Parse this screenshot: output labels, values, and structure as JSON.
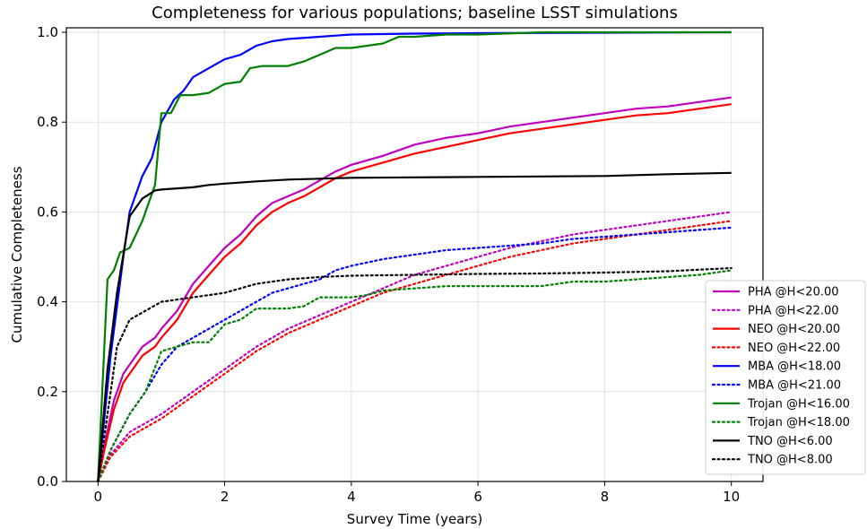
{
  "chart_data": {
    "type": "line",
    "title": "Completeness for various populations; baseline LSST simulations",
    "xlabel": "Survey Time (years)",
    "ylabel": "Cumulative Completeness",
    "xlim": [
      -0.5,
      10.5
    ],
    "ylim": [
      0.0,
      1.01
    ],
    "x_ticks": [
      "0",
      "2",
      "4",
      "6",
      "8",
      "10"
    ],
    "y_ticks": [
      "0.0",
      "0.2",
      "0.4",
      "0.6",
      "0.8",
      "1.0"
    ],
    "grid": true,
    "legend_position": "lower-right",
    "series": [
      {
        "name": "PHA @H<20.00",
        "color": "#bf00bf",
        "style": "solid",
        "points": [
          [
            0,
            0
          ],
          [
            0.1,
            0.08
          ],
          [
            0.25,
            0.18
          ],
          [
            0.4,
            0.24
          ],
          [
            0.5,
            0.26
          ],
          [
            0.7,
            0.3
          ],
          [
            0.9,
            0.32
          ],
          [
            1,
            0.34
          ],
          [
            1.25,
            0.38
          ],
          [
            1.5,
            0.44
          ],
          [
            1.75,
            0.48
          ],
          [
            2,
            0.52
          ],
          [
            2.25,
            0.55
          ],
          [
            2.5,
            0.59
          ],
          [
            2.75,
            0.62
          ],
          [
            3,
            0.635
          ],
          [
            3.25,
            0.65
          ],
          [
            3.5,
            0.67
          ],
          [
            3.75,
            0.69
          ],
          [
            4,
            0.705
          ],
          [
            4.5,
            0.725
          ],
          [
            5,
            0.75
          ],
          [
            5.5,
            0.765
          ],
          [
            6,
            0.775
          ],
          [
            6.5,
            0.79
          ],
          [
            7,
            0.8
          ],
          [
            7.5,
            0.81
          ],
          [
            8,
            0.82
          ],
          [
            8.5,
            0.83
          ],
          [
            9,
            0.835
          ],
          [
            9.5,
            0.845
          ],
          [
            10,
            0.855
          ]
        ]
      },
      {
        "name": "PHA @H<22.00",
        "color": "#bf00bf",
        "style": "dotted",
        "points": [
          [
            0,
            0
          ],
          [
            0.2,
            0.06
          ],
          [
            0.5,
            0.11
          ],
          [
            1,
            0.15
          ],
          [
            1.5,
            0.2
          ],
          [
            2,
            0.25
          ],
          [
            2.5,
            0.3
          ],
          [
            3,
            0.34
          ],
          [
            3.5,
            0.37
          ],
          [
            4,
            0.4
          ],
          [
            4.5,
            0.43
          ],
          [
            5,
            0.46
          ],
          [
            5.5,
            0.48
          ],
          [
            6,
            0.5
          ],
          [
            6.5,
            0.52
          ],
          [
            7,
            0.535
          ],
          [
            7.5,
            0.55
          ],
          [
            8,
            0.56
          ],
          [
            8.5,
            0.57
          ],
          [
            9,
            0.58
          ],
          [
            9.5,
            0.59
          ],
          [
            10,
            0.6
          ]
        ]
      },
      {
        "name": "NEO @H<20.00",
        "color": "#ff0000",
        "style": "solid",
        "points": [
          [
            0,
            0
          ],
          [
            0.1,
            0.07
          ],
          [
            0.25,
            0.16
          ],
          [
            0.4,
            0.22
          ],
          [
            0.5,
            0.24
          ],
          [
            0.7,
            0.28
          ],
          [
            0.9,
            0.3
          ],
          [
            1,
            0.32
          ],
          [
            1.25,
            0.36
          ],
          [
            1.5,
            0.42
          ],
          [
            1.75,
            0.46
          ],
          [
            2,
            0.5
          ],
          [
            2.25,
            0.53
          ],
          [
            2.5,
            0.57
          ],
          [
            2.75,
            0.6
          ],
          [
            3,
            0.62
          ],
          [
            3.25,
            0.635
          ],
          [
            3.5,
            0.655
          ],
          [
            3.75,
            0.675
          ],
          [
            4,
            0.69
          ],
          [
            4.5,
            0.71
          ],
          [
            5,
            0.73
          ],
          [
            5.5,
            0.745
          ],
          [
            6,
            0.76
          ],
          [
            6.5,
            0.775
          ],
          [
            7,
            0.785
          ],
          [
            7.5,
            0.795
          ],
          [
            8,
            0.805
          ],
          [
            8.5,
            0.815
          ],
          [
            9,
            0.82
          ],
          [
            9.5,
            0.83
          ],
          [
            10,
            0.84
          ]
        ]
      },
      {
        "name": "NEO @H<22.00",
        "color": "#ff0000",
        "style": "dotted",
        "points": [
          [
            0,
            0
          ],
          [
            0.2,
            0.055
          ],
          [
            0.5,
            0.1
          ],
          [
            1,
            0.14
          ],
          [
            1.5,
            0.19
          ],
          [
            2,
            0.24
          ],
          [
            2.5,
            0.29
          ],
          [
            3,
            0.33
          ],
          [
            3.5,
            0.36
          ],
          [
            4,
            0.39
          ],
          [
            4.5,
            0.42
          ],
          [
            5,
            0.44
          ],
          [
            5.5,
            0.46
          ],
          [
            6,
            0.48
          ],
          [
            6.5,
            0.5
          ],
          [
            7,
            0.515
          ],
          [
            7.5,
            0.53
          ],
          [
            8,
            0.54
          ],
          [
            8.5,
            0.55
          ],
          [
            9,
            0.56
          ],
          [
            9.5,
            0.57
          ],
          [
            10,
            0.58
          ]
        ]
      },
      {
        "name": "MBA @H<18.00",
        "color": "#0000ff",
        "style": "solid",
        "points": [
          [
            0,
            0
          ],
          [
            0.2,
            0.28
          ],
          [
            0.4,
            0.5
          ],
          [
            0.5,
            0.6
          ],
          [
            0.7,
            0.68
          ],
          [
            0.85,
            0.72
          ],
          [
            1,
            0.8
          ],
          [
            1.2,
            0.85
          ],
          [
            1.35,
            0.87
          ],
          [
            1.5,
            0.9
          ],
          [
            1.75,
            0.92
          ],
          [
            2,
            0.94
          ],
          [
            2.25,
            0.95
          ],
          [
            2.5,
            0.97
          ],
          [
            2.75,
            0.98
          ],
          [
            3,
            0.985
          ],
          [
            3.5,
            0.99
          ],
          [
            4,
            0.995
          ],
          [
            5,
            0.997
          ],
          [
            6,
            0.998
          ],
          [
            8,
            0.999
          ],
          [
            10,
            1.0
          ]
        ]
      },
      {
        "name": "MBA @H<21.00",
        "color": "#0000ff",
        "style": "dotted",
        "points": [
          [
            0,
            0
          ],
          [
            0.2,
            0.07
          ],
          [
            0.5,
            0.15
          ],
          [
            0.75,
            0.2
          ],
          [
            1,
            0.26
          ],
          [
            1.25,
            0.3
          ],
          [
            1.5,
            0.32
          ],
          [
            1.75,
            0.34
          ],
          [
            2,
            0.36
          ],
          [
            2.25,
            0.38
          ],
          [
            2.5,
            0.4
          ],
          [
            2.75,
            0.42
          ],
          [
            3,
            0.43
          ],
          [
            3.25,
            0.44
          ],
          [
            3.5,
            0.45
          ],
          [
            3.75,
            0.47
          ],
          [
            4,
            0.48
          ],
          [
            4.5,
            0.495
          ],
          [
            5,
            0.505
          ],
          [
            5.5,
            0.515
          ],
          [
            6,
            0.52
          ],
          [
            6.5,
            0.525
          ],
          [
            7,
            0.53
          ],
          [
            7.5,
            0.54
          ],
          [
            8,
            0.545
          ],
          [
            8.5,
            0.55
          ],
          [
            9,
            0.555
          ],
          [
            9.5,
            0.56
          ],
          [
            10,
            0.565
          ]
        ]
      },
      {
        "name": "Trojan @H<16.00",
        "color": "#008000",
        "style": "solid",
        "points": [
          [
            0,
            0
          ],
          [
            0.15,
            0.45
          ],
          [
            0.25,
            0.47
          ],
          [
            0.35,
            0.51
          ],
          [
            0.5,
            0.52
          ],
          [
            0.7,
            0.58
          ],
          [
            0.9,
            0.66
          ],
          [
            1,
            0.82
          ],
          [
            1.15,
            0.82
          ],
          [
            1.3,
            0.86
          ],
          [
            1.5,
            0.86
          ],
          [
            1.75,
            0.865
          ],
          [
            2,
            0.885
          ],
          [
            2.25,
            0.89
          ],
          [
            2.4,
            0.92
          ],
          [
            2.6,
            0.925
          ],
          [
            3,
            0.925
          ],
          [
            3.25,
            0.935
          ],
          [
            3.5,
            0.95
          ],
          [
            3.75,
            0.965
          ],
          [
            4,
            0.965
          ],
          [
            4.25,
            0.97
          ],
          [
            4.5,
            0.975
          ],
          [
            4.75,
            0.99
          ],
          [
            5,
            0.99
          ],
          [
            5.5,
            0.995
          ],
          [
            6,
            0.995
          ],
          [
            7,
            1.0
          ],
          [
            8,
            1.0
          ],
          [
            10,
            1.0
          ]
        ]
      },
      {
        "name": "Trojan @H<18.00",
        "color": "#008000",
        "style": "dotted",
        "points": [
          [
            0,
            0
          ],
          [
            0.2,
            0.07
          ],
          [
            0.5,
            0.15
          ],
          [
            0.75,
            0.2
          ],
          [
            1,
            0.29
          ],
          [
            1.25,
            0.3
          ],
          [
            1.5,
            0.31
          ],
          [
            1.75,
            0.31
          ],
          [
            2,
            0.35
          ],
          [
            2.25,
            0.36
          ],
          [
            2.5,
            0.385
          ],
          [
            3,
            0.385
          ],
          [
            3.25,
            0.39
          ],
          [
            3.5,
            0.41
          ],
          [
            4,
            0.41
          ],
          [
            4.25,
            0.415
          ],
          [
            4.5,
            0.425
          ],
          [
            5,
            0.43
          ],
          [
            5.5,
            0.435
          ],
          [
            6,
            0.435
          ],
          [
            6.5,
            0.435
          ],
          [
            7,
            0.435
          ],
          [
            7.25,
            0.44
          ],
          [
            7.5,
            0.445
          ],
          [
            8,
            0.445
          ],
          [
            8.5,
            0.45
          ],
          [
            9,
            0.455
          ],
          [
            9.5,
            0.46
          ],
          [
            10,
            0.47
          ]
        ]
      },
      {
        "name": "TNO @H<6.00",
        "color": "#000000",
        "style": "solid",
        "points": [
          [
            0,
            0
          ],
          [
            0.15,
            0.25
          ],
          [
            0.3,
            0.42
          ],
          [
            0.5,
            0.59
          ],
          [
            0.7,
            0.63
          ],
          [
            0.9,
            0.648
          ],
          [
            1,
            0.65
          ],
          [
            1.5,
            0.655
          ],
          [
            1.75,
            0.66
          ],
          [
            2,
            0.663
          ],
          [
            2.5,
            0.668
          ],
          [
            3,
            0.672
          ],
          [
            3.5,
            0.674
          ],
          [
            4,
            0.676
          ],
          [
            5,
            0.677
          ],
          [
            6,
            0.678
          ],
          [
            7,
            0.679
          ],
          [
            8,
            0.68
          ],
          [
            9,
            0.684
          ],
          [
            10,
            0.687
          ]
        ]
      },
      {
        "name": "TNO @H<8.00",
        "color": "#000000",
        "style": "dotted",
        "points": [
          [
            0,
            0
          ],
          [
            0.15,
            0.15
          ],
          [
            0.3,
            0.3
          ],
          [
            0.5,
            0.36
          ],
          [
            0.75,
            0.38
          ],
          [
            1,
            0.4
          ],
          [
            1.5,
            0.41
          ],
          [
            2,
            0.42
          ],
          [
            2.5,
            0.44
          ],
          [
            3,
            0.45
          ],
          [
            3.5,
            0.455
          ],
          [
            4,
            0.458
          ],
          [
            5,
            0.46
          ],
          [
            6,
            0.462
          ],
          [
            7,
            0.463
          ],
          [
            8,
            0.465
          ],
          [
            9,
            0.468
          ],
          [
            10,
            0.475
          ]
        ]
      }
    ]
  }
}
